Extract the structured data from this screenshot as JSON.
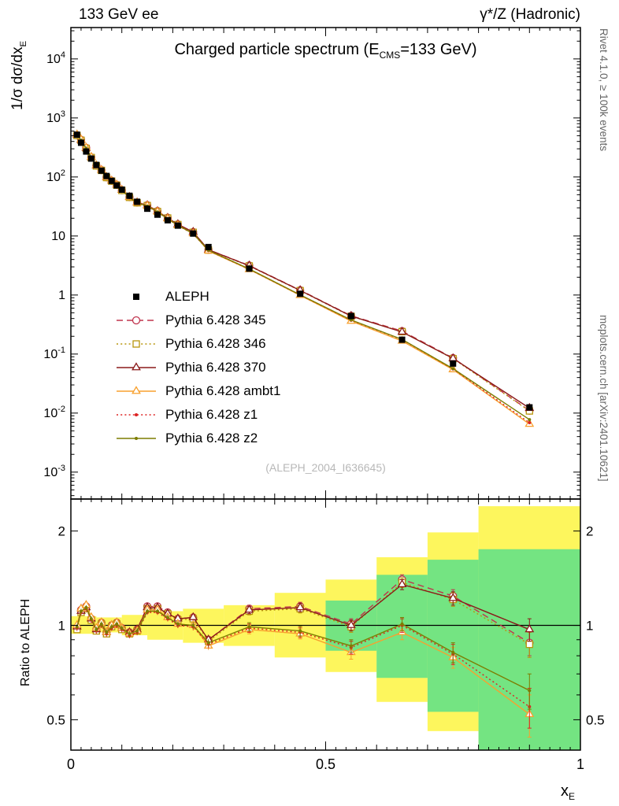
{
  "header": {
    "left": "133 GeV ee",
    "right": "γ*/Z (Hadronic)"
  },
  "side_notes": {
    "top": "Rivet 4.1.0, ≥ 100k events",
    "bottom": "mcplots.cern.ch [arXiv:2401.10621]"
  },
  "chart_data": {
    "type": "line",
    "title_pre": "Charged particle spectrum (E",
    "title_sub": "CMS",
    "title_post": "=133 GeV)",
    "ylabel_pre": "1/σ  dσ/dx",
    "ylabel_sub": "E",
    "ratio_label": "Ratio to ALEPH",
    "xlabel_pre": "x",
    "xlabel_sub": "E",
    "watermark": "(ALEPH_2004_I636645)",
    "legend_position": "inside-left",
    "grid": false,
    "xlim": [
      0,
      1
    ],
    "ylim": [
      0.00035,
      34000
    ],
    "ratio_ylim": [
      0.4,
      2.53
    ],
    "xticks": {
      "major": [
        0,
        0.5,
        1
      ],
      "labels": [
        "0",
        "0.5",
        "1"
      ]
    },
    "yticks_exponents": [
      4,
      3,
      2,
      1,
      0,
      -1,
      -2,
      -3
    ],
    "ratio_ticks": [
      2,
      1,
      0.5
    ],
    "ratio_minor_ticks": [
      0.4,
      0.6,
      0.7,
      0.8,
      0.9
    ],
    "x": [
      0.012,
      0.02,
      0.03,
      0.04,
      0.05,
      0.06,
      0.07,
      0.08,
      0.09,
      0.1,
      0.115,
      0.13,
      0.15,
      0.17,
      0.19,
      0.21,
      0.24,
      0.27,
      0.35,
      0.45,
      0.55,
      0.65,
      0.75,
      0.9
    ],
    "aleph": {
      "name": "ALEPH",
      "color": "#000000",
      "marker": "square-filled",
      "line": "none",
      "values": [
        520,
        380,
        270,
        205,
        160,
        128,
        104,
        86,
        72,
        61,
        48,
        38,
        29,
        23,
        18.5,
        15,
        11,
        6.5,
        2.8,
        1.05,
        0.44,
        0.175,
        0.069,
        0.0125
      ]
    },
    "mc_series": [
      {
        "name": "Pythia 6.428 345",
        "color": "#c0334d",
        "line": "dashed",
        "marker": "circle-open",
        "ratio": [
          0.98,
          1.12,
          1.15,
          1.05,
          0.97,
          1.02,
          0.95,
          1.0,
          1.02,
          0.98,
          0.95,
          0.97,
          1.15,
          1.15,
          1.1,
          1.05,
          1.06,
          0.9,
          1.13,
          1.15,
          1.01,
          1.4,
          1.24,
          0.88
        ]
      },
      {
        "name": "Pythia 6.428 346",
        "color": "#b8960c",
        "line": "dotted",
        "marker": "square-open",
        "ratio": [
          0.97,
          1.1,
          1.13,
          1.04,
          0.96,
          1.01,
          0.94,
          0.99,
          1.01,
          0.97,
          0.94,
          0.96,
          1.13,
          1.13,
          1.09,
          1.04,
          1.05,
          0.89,
          1.11,
          1.13,
          0.99,
          1.37,
          1.21,
          0.87
        ]
      },
      {
        "name": "Pythia 6.428 370",
        "color": "#8b1a1a",
        "line": "solid",
        "marker": "triangle-open",
        "ratio": [
          0.99,
          1.11,
          1.14,
          1.05,
          0.97,
          1.02,
          0.95,
          1.0,
          1.02,
          0.98,
          0.95,
          0.97,
          1.14,
          1.14,
          1.09,
          1.05,
          1.06,
          0.9,
          1.12,
          1.14,
          1.0,
          1.35,
          1.22,
          0.97
        ]
      },
      {
        "name": "Pythia 6.428 ambt1",
        "color": "#f8a02e",
        "line": "solid",
        "marker": "triangle-open",
        "ratio": [
          1.0,
          1.13,
          1.16,
          1.06,
          0.98,
          1.02,
          0.95,
          1.0,
          1.02,
          0.98,
          0.94,
          0.96,
          1.12,
          1.12,
          1.06,
          1.01,
          1.0,
          0.86,
          0.97,
          0.94,
          0.82,
          0.95,
          0.79,
          0.52
        ]
      },
      {
        "name": "Pythia 6.428 z1",
        "color": "#dd2222",
        "line": "dotted",
        "marker": "dot",
        "ratio": [
          0.98,
          1.1,
          1.13,
          1.04,
          0.96,
          1.0,
          0.94,
          0.98,
          1.0,
          0.97,
          0.93,
          0.95,
          1.1,
          1.1,
          1.05,
          1.0,
          0.99,
          0.87,
          0.98,
          0.95,
          0.85,
          1.0,
          0.81,
          0.55
        ]
      },
      {
        "name": "Pythia 6.428 z2",
        "color": "#7d7d00",
        "line": "solid",
        "marker": "dot",
        "ratio": [
          0.99,
          1.11,
          1.14,
          1.05,
          0.97,
          1.01,
          0.95,
          0.99,
          1.01,
          0.98,
          0.94,
          0.96,
          1.11,
          1.11,
          1.06,
          1.01,
          1.0,
          0.88,
          0.99,
          0.96,
          0.86,
          1.01,
          0.82,
          0.62
        ]
      }
    ],
    "ratio_err": [
      0.02,
      0.02,
      0.02,
      0.02,
      0.02,
      0.02,
      0.02,
      0.02,
      0.02,
      0.02,
      0.02,
      0.02,
      0.02,
      0.02,
      0.02,
      0.02,
      0.025,
      0.025,
      0.03,
      0.035,
      0.04,
      0.05,
      0.06,
      0.08
    ],
    "bands": {
      "yellow_color": "#fdf65d",
      "green_color": "#74e482",
      "yellow": [
        [
          0.0,
          0.05,
          0.94,
          1.07
        ],
        [
          0.05,
          0.1,
          0.95,
          1.06
        ],
        [
          0.1,
          0.15,
          0.93,
          1.08
        ],
        [
          0.15,
          0.22,
          0.9,
          1.11
        ],
        [
          0.22,
          0.3,
          0.88,
          1.13
        ],
        [
          0.3,
          0.4,
          0.86,
          1.16
        ],
        [
          0.4,
          0.5,
          0.79,
          1.27
        ],
        [
          0.5,
          0.6,
          0.71,
          1.4
        ],
        [
          0.6,
          0.7,
          0.57,
          1.65
        ],
        [
          0.7,
          0.8,
          0.46,
          1.98
        ],
        [
          0.8,
          1.0,
          0.4,
          2.4
        ]
      ],
      "green": [
        [
          0.5,
          0.6,
          0.83,
          1.2
        ],
        [
          0.6,
          0.7,
          0.68,
          1.45
        ],
        [
          0.7,
          0.8,
          0.53,
          1.62
        ],
        [
          0.8,
          1.0,
          0.4,
          1.75
        ]
      ]
    }
  }
}
